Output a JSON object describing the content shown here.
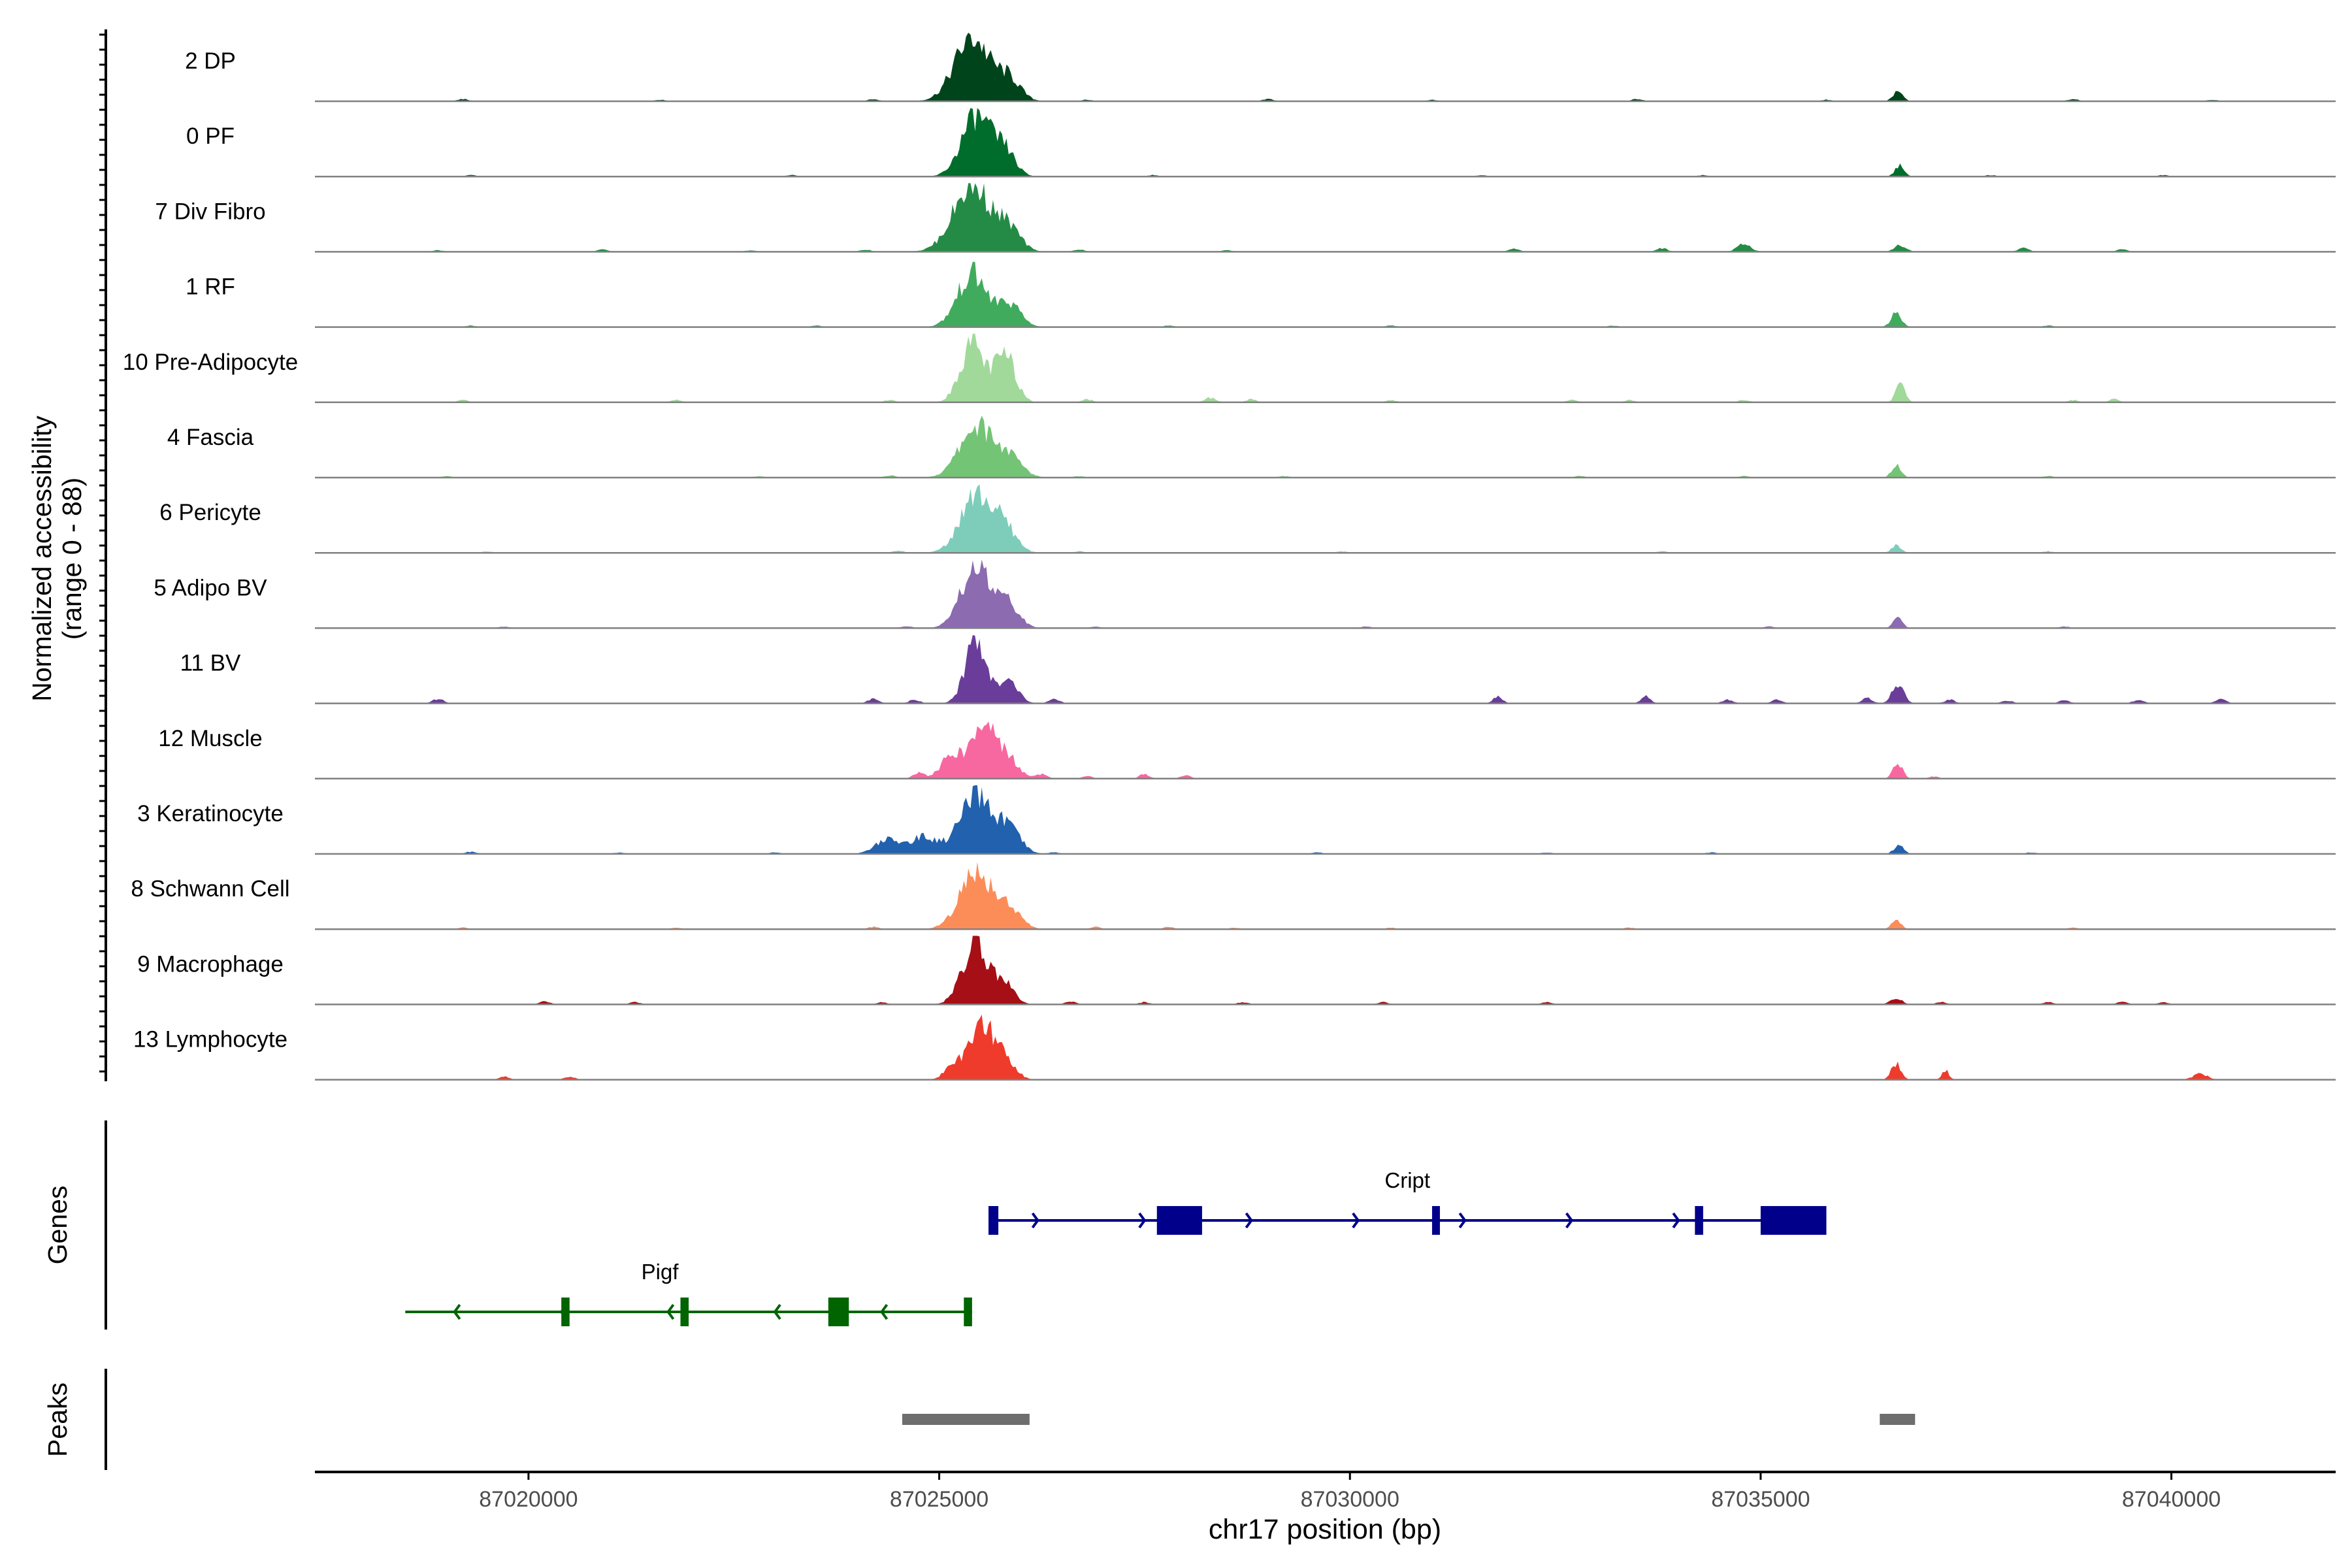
{
  "chart_data": {
    "type": "area",
    "title": "",
    "chromosome": "chr17",
    "xlabel": "chr17 position (bp)",
    "ylabel": "Normalized accessibility",
    "ylabel_range": "(range 0 - 88)",
    "y_range": [
      0,
      88
    ],
    "xlim": [
      87017400,
      87042000
    ],
    "x_ticks": [
      87020000,
      87025000,
      87030000,
      87035000,
      87040000
    ],
    "x_tick_labels": [
      "87020000",
      "87025000",
      "87030000",
      "87035000",
      "87040000"
    ],
    "tracks": [
      {
        "name": "2 DP",
        "color": "#00441b",
        "peaks": [
          [
            87025400,
            84,
            300
          ],
          [
            87025850,
            28,
            200
          ],
          [
            87036670,
            14,
            80
          ]
        ],
        "noise": [
          [
            87019200,
            3
          ],
          [
            87021600,
            2
          ],
          [
            87024200,
            3
          ],
          [
            87026800,
            2
          ],
          [
            87029000,
            3
          ],
          [
            87031000,
            2
          ],
          [
            87033500,
            3
          ],
          [
            87035800,
            2
          ],
          [
            87038800,
            3
          ],
          [
            87040500,
            2
          ]
        ]
      },
      {
        "name": "0 PF",
        "color": "#006d2c",
        "peaks": [
          [
            87025450,
            80,
            250
          ],
          [
            87025800,
            32,
            180
          ],
          [
            87036690,
            14,
            80
          ]
        ],
        "noise": [
          [
            87019300,
            2
          ],
          [
            87023200,
            2
          ],
          [
            87027600,
            2
          ],
          [
            87031600,
            2
          ],
          [
            87034300,
            2
          ],
          [
            87037800,
            2
          ],
          [
            87039900,
            2
          ]
        ]
      },
      {
        "name": "7 Div Fibro",
        "color": "#238b45",
        "peaks": [
          [
            87025400,
            88,
            320
          ],
          [
            87025850,
            28,
            200
          ],
          [
            87034800,
            10,
            120
          ],
          [
            87036700,
            9,
            100
          ]
        ],
        "noise": [
          [
            87018900,
            2
          ],
          [
            87020900,
            3
          ],
          [
            87022700,
            2
          ],
          [
            87024100,
            3
          ],
          [
            87026700,
            3
          ],
          [
            87028500,
            2
          ],
          [
            87032000,
            4
          ],
          [
            87033800,
            5
          ],
          [
            87038200,
            5
          ],
          [
            87039400,
            3
          ]
        ]
      },
      {
        "name": "1 RF",
        "color": "#41ab5d",
        "peaks": [
          [
            87025400,
            70,
            250
          ],
          [
            87025850,
            30,
            200
          ],
          [
            87036650,
            18,
            90
          ]
        ],
        "noise": [
          [
            87019300,
            2
          ],
          [
            87023500,
            2
          ],
          [
            87027800,
            2
          ],
          [
            87030500,
            2
          ],
          [
            87033200,
            2
          ],
          [
            87038500,
            2
          ]
        ]
      },
      {
        "name": "10 Pre-Adipocyte",
        "color": "#a1d99b",
        "peaks": [
          [
            87025400,
            78,
            200
          ],
          [
            87025800,
            62,
            180
          ],
          [
            87036700,
            22,
            80
          ]
        ],
        "noise": [
          [
            87019200,
            3
          ],
          [
            87021800,
            3
          ],
          [
            87024400,
            3
          ],
          [
            87026800,
            4
          ],
          [
            87028300,
            6
          ],
          [
            87028800,
            4
          ],
          [
            87030500,
            3
          ],
          [
            87032700,
            3
          ],
          [
            87033400,
            3
          ],
          [
            87034800,
            3
          ],
          [
            87038800,
            3
          ],
          [
            87039300,
            4
          ]
        ]
      },
      {
        "name": "4 Fascia",
        "color": "#74c476",
        "peaks": [
          [
            87025450,
            68,
            280
          ],
          [
            87025850,
            26,
            220
          ],
          [
            87036650,
            16,
            80
          ]
        ],
        "noise": [
          [
            87019000,
            2
          ],
          [
            87022800,
            2
          ],
          [
            87024400,
            3
          ],
          [
            87026700,
            2
          ],
          [
            87029200,
            2
          ],
          [
            87032800,
            2
          ],
          [
            87034800,
            2
          ],
          [
            87038500,
            2
          ]
        ]
      },
      {
        "name": "6 Pericyte",
        "color": "#7ecdbb",
        "peaks": [
          [
            87025450,
            76,
            270
          ],
          [
            87025800,
            30,
            200
          ],
          [
            87036650,
            10,
            80
          ]
        ],
        "noise": [
          [
            87019500,
            2
          ],
          [
            87024500,
            3
          ],
          [
            87026700,
            2
          ],
          [
            87029900,
            2
          ],
          [
            87033800,
            2
          ],
          [
            87038500,
            2
          ]
        ]
      },
      {
        "name": "5 Adipo BV",
        "color": "#8c6bb1",
        "peaks": [
          [
            87025450,
            82,
            250
          ],
          [
            87025850,
            30,
            180
          ],
          [
            87036670,
            14,
            80
          ]
        ],
        "noise": [
          [
            87019700,
            2
          ],
          [
            87024600,
            3
          ],
          [
            87026900,
            2
          ],
          [
            87030200,
            2
          ],
          [
            87035100,
            2
          ],
          [
            87038700,
            2
          ]
        ]
      },
      {
        "name": "11 BV",
        "color": "#6a3d9a",
        "peaks": [
          [
            87025450,
            86,
            180
          ],
          [
            87025850,
            28,
            160
          ],
          [
            87036670,
            24,
            100
          ],
          [
            87031800,
            9,
            80
          ],
          [
            87033600,
            9,
            80
          ]
        ],
        "noise": [
          [
            87018900,
            6
          ],
          [
            87024200,
            6
          ],
          [
            87024700,
            5
          ],
          [
            87026400,
            6
          ],
          [
            87034600,
            5
          ],
          [
            87035200,
            5
          ],
          [
            87036300,
            7
          ],
          [
            87037300,
            5
          ],
          [
            87038000,
            4
          ],
          [
            87038700,
            4
          ],
          [
            87039600,
            5
          ],
          [
            87040600,
            6
          ]
        ]
      },
      {
        "name": "12 Muscle",
        "color": "#f768a1",
        "peaks": [
          [
            87025550,
            72,
            220
          ],
          [
            87025150,
            30,
            180
          ],
          [
            87025850,
            22,
            180
          ],
          [
            87036670,
            20,
            80
          ]
        ],
        "noise": [
          [
            87024750,
            8
          ],
          [
            87026250,
            6
          ],
          [
            87026800,
            4
          ],
          [
            87027500,
            6
          ],
          [
            87028000,
            4
          ],
          [
            87037100,
            3
          ]
        ]
      },
      {
        "name": "3 Keratinocyte",
        "color": "#2161ae",
        "peaks": [
          [
            87025450,
            74,
            280
          ],
          [
            87025850,
            30,
            200
          ],
          [
            87024800,
            22,
            250
          ],
          [
            87024350,
            18,
            200
          ],
          [
            87036680,
            12,
            80
          ]
        ],
        "noise": [
          [
            87019300,
            3
          ],
          [
            87021100,
            2
          ],
          [
            87023000,
            2
          ],
          [
            87026400,
            2
          ],
          [
            87029600,
            2
          ],
          [
            87032400,
            2
          ],
          [
            87034400,
            2
          ],
          [
            87038300,
            2
          ]
        ]
      },
      {
        "name": "8 Schwann Cell",
        "color": "#fc8d59",
        "peaks": [
          [
            87025450,
            76,
            280
          ],
          [
            87025850,
            26,
            200
          ],
          [
            87036650,
            12,
            80
          ]
        ],
        "noise": [
          [
            87019200,
            2
          ],
          [
            87021800,
            2
          ],
          [
            87024200,
            3
          ],
          [
            87026900,
            3
          ],
          [
            87027800,
            3
          ],
          [
            87028600,
            2
          ],
          [
            87030500,
            2
          ],
          [
            87033400,
            2
          ],
          [
            87038800,
            2
          ]
        ]
      },
      {
        "name": "9 Macrophage",
        "color": "#a50f15",
        "peaks": [
          [
            87025450,
            78,
            230
          ],
          [
            87025800,
            24,
            160
          ],
          [
            87036650,
            8,
            100
          ]
        ],
        "noise": [
          [
            87020200,
            4
          ],
          [
            87021300,
            3
          ],
          [
            87024300,
            3
          ],
          [
            87026600,
            4
          ],
          [
            87027500,
            3
          ],
          [
            87028700,
            3
          ],
          [
            87030400,
            3
          ],
          [
            87032400,
            3
          ],
          [
            87037200,
            3
          ],
          [
            87038500,
            3
          ],
          [
            87039400,
            4
          ],
          [
            87039900,
            3
          ]
        ]
      },
      {
        "name": "13 Lymphocyte",
        "color": "#ef3b2c",
        "peaks": [
          [
            87025550,
            72,
            220
          ],
          [
            87025200,
            22,
            160
          ],
          [
            87025850,
            18,
            150
          ],
          [
            87036650,
            22,
            80
          ],
          [
            87037250,
            12,
            60
          ],
          [
            87040350,
            8,
            120
          ]
        ],
        "noise": [
          [
            87019700,
            4
          ],
          [
            87020500,
            4
          ]
        ]
      }
    ],
    "genes": [
      {
        "name": "Cript",
        "strand": "+",
        "color": "#00008b",
        "start": 87025600,
        "end": 87035800,
        "exons": [
          [
            87025600,
            87025720
          ],
          [
            87027650,
            87028200
          ],
          [
            87031000,
            87031080
          ],
          [
            87034200,
            87034300
          ],
          [
            87035000,
            87035800
          ]
        ]
      },
      {
        "name": "Pigf",
        "strand": "-",
        "color": "#006400",
        "start": 87018500,
        "end": 87025400,
        "exons": [
          [
            87020400,
            87020500
          ],
          [
            87021850,
            87021950
          ],
          [
            87023650,
            87023900
          ],
          [
            87025300,
            87025400
          ]
        ]
      }
    ],
    "peak_regions": [
      [
        87024550,
        87026100
      ],
      [
        87036450,
        87036880
      ]
    ],
    "peak_color": "#6e6e6e",
    "panel_labels": {
      "genes": "Genes",
      "peaks": "Peaks"
    }
  }
}
